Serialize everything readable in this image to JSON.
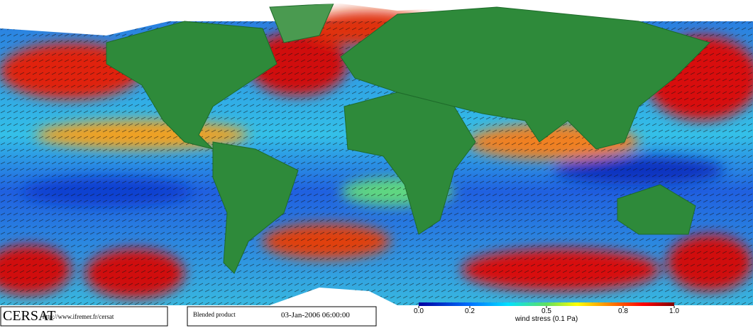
{
  "footer": {
    "logo": "CERSAT",
    "url": "http://www.ifremer.fr/cersat",
    "product": "Blended product",
    "date": "03-Jan-2006 06:00:00"
  },
  "colorbar": {
    "label": "wind stress (0.1 Pa)",
    "range": [
      0,
      1
    ],
    "ticks": [
      {
        "value": 0,
        "label": "0.0"
      },
      0.2,
      0.5,
      0.8,
      {
        "value": 1,
        "label": "1.0"
      }
    ]
  }
}
